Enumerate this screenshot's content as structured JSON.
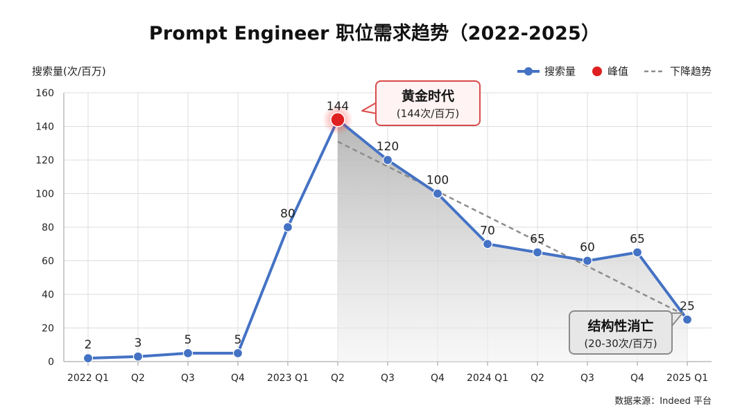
{
  "title": "Prompt Engineer 职位需求趋势（2022-2025）",
  "source": "数据来源：Indeed 平台",
  "legend": {
    "series": "搜索量",
    "peak": "峰值",
    "trend": "下降趋势"
  },
  "colors": {
    "series": "#4472c4",
    "peak": "#e02020",
    "trend": "#8c8c8c",
    "callout_peak_border": "#d94a4a",
    "callout_low_border": "#8a8a8a"
  },
  "callouts": {
    "peak": {
      "title": "黄金时代",
      "subtitle": "(144次/百万)"
    },
    "low": {
      "title": "结构性消亡",
      "subtitle": "(20-30次/百万)"
    }
  },
  "chart_data": {
    "type": "line",
    "ylabel": "搜索量(次/百万)",
    "xlabel": "",
    "ylim": [
      0,
      160
    ],
    "yticks": [
      0,
      20,
      40,
      60,
      80,
      100,
      120,
      140,
      160
    ],
    "grid": true,
    "legend_position": "top-right",
    "categories": [
      "2022 Q1",
      "Q2",
      "Q3",
      "Q4",
      "2023 Q1",
      "Q2",
      "Q3",
      "Q4",
      "2024 Q1",
      "Q2",
      "Q3",
      "Q4",
      "2025 Q1"
    ],
    "series": [
      {
        "name": "搜索量",
        "values": [
          2,
          3,
          5,
          5,
          80,
          144,
          120,
          100,
          70,
          65,
          60,
          65,
          25
        ]
      }
    ],
    "data_labels": [
      "2",
      "3",
      "5",
      "5",
      "80",
      "144",
      "120",
      "100",
      "70",
      "65",
      "60",
      "65",
      "25"
    ],
    "peak": {
      "index": 5,
      "value": 144
    },
    "trend_line": {
      "from_index": 5,
      "from_value": 131,
      "to_index": 12,
      "to_value": 27
    }
  }
}
